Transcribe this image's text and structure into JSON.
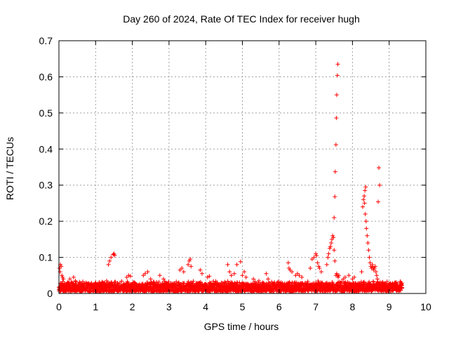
{
  "chart_data": {
    "type": "scatter",
    "title": "Day 260 of 2024, Rate Of TEC Index for receiver hugh",
    "xlabel": "GPS time / hours",
    "ylabel": "ROTI / TECUs",
    "xlim": [
      0,
      10
    ],
    "ylim": [
      0,
      0.7
    ],
    "xticks": [
      0,
      1,
      2,
      3,
      4,
      5,
      6,
      7,
      8,
      9,
      10
    ],
    "yticks": [
      0,
      0.1,
      0.2,
      0.3,
      0.4,
      0.5,
      0.6,
      0.7
    ],
    "xtick_labels": [
      "0",
      "1",
      "2",
      "3",
      "4",
      "5",
      "6",
      "7",
      "8",
      "9",
      "10"
    ],
    "ytick_labels": [
      "0",
      "0.1",
      "0.2",
      "0.3",
      "0.4",
      "0.5",
      "0.6",
      "0.7"
    ],
    "grid": true,
    "marker": "+",
    "color": "#ff0000",
    "series": [
      {
        "name": "ROTI",
        "points": [
          [
            0.02,
            0.07
          ],
          [
            0.03,
            0.06
          ],
          [
            0.04,
            0.08
          ],
          [
            0.06,
            0.075
          ],
          [
            0.08,
            0.05
          ],
          [
            0.1,
            0.045
          ],
          [
            0.12,
            0.04
          ],
          [
            0.3,
            0.04
          ],
          [
            0.4,
            0.045
          ],
          [
            0.45,
            0.035
          ],
          [
            1.0,
            0.03
          ],
          [
            1.3,
            0.035
          ],
          [
            1.35,
            0.08
          ],
          [
            1.38,
            0.09
          ],
          [
            1.42,
            0.1
          ],
          [
            1.48,
            0.108
          ],
          [
            1.5,
            0.11
          ],
          [
            1.52,
            0.106
          ],
          [
            1.85,
            0.045
          ],
          [
            1.9,
            0.05
          ],
          [
            1.95,
            0.048
          ],
          [
            2.3,
            0.05
          ],
          [
            2.35,
            0.055
          ],
          [
            2.42,
            0.06
          ],
          [
            2.5,
            0.04
          ],
          [
            2.75,
            0.05
          ],
          [
            2.85,
            0.04
          ],
          [
            3.3,
            0.065
          ],
          [
            3.35,
            0.07
          ],
          [
            3.4,
            0.06
          ],
          [
            3.52,
            0.08
          ],
          [
            3.55,
            0.09
          ],
          [
            3.58,
            0.095
          ],
          [
            3.6,
            0.075
          ],
          [
            3.85,
            0.065
          ],
          [
            3.9,
            0.055
          ],
          [
            4.05,
            0.045
          ],
          [
            4.1,
            0.048
          ],
          [
            4.6,
            0.08
          ],
          [
            4.65,
            0.06
          ],
          [
            4.7,
            0.05
          ],
          [
            4.78,
            0.055
          ],
          [
            4.85,
            0.08
          ],
          [
            4.95,
            0.088
          ],
          [
            5.0,
            0.05
          ],
          [
            5.05,
            0.06
          ],
          [
            5.1,
            0.045
          ],
          [
            5.3,
            0.04
          ],
          [
            5.45,
            0.035
          ],
          [
            5.65,
            0.055
          ],
          [
            5.7,
            0.04
          ],
          [
            6.25,
            0.085
          ],
          [
            6.27,
            0.07
          ],
          [
            6.3,
            0.065
          ],
          [
            6.35,
            0.06
          ],
          [
            6.45,
            0.05
          ],
          [
            6.5,
            0.055
          ],
          [
            6.55,
            0.05
          ],
          [
            6.62,
            0.045
          ],
          [
            6.85,
            0.07
          ],
          [
            6.9,
            0.095
          ],
          [
            6.95,
            0.1
          ],
          [
            7.0,
            0.11
          ],
          [
            7.02,
            0.105
          ],
          [
            7.05,
            0.085
          ],
          [
            7.08,
            0.075
          ],
          [
            7.1,
            0.07
          ],
          [
            7.15,
            0.06
          ],
          [
            7.3,
            0.08
          ],
          [
            7.33,
            0.1
          ],
          [
            7.35,
            0.11
          ],
          [
            7.38,
            0.125
          ],
          [
            7.4,
            0.13
          ],
          [
            7.42,
            0.14
          ],
          [
            7.44,
            0.15
          ],
          [
            7.46,
            0.16
          ],
          [
            7.48,
            0.155
          ],
          [
            7.5,
            0.12
          ],
          [
            7.52,
            0.09
          ],
          [
            7.55,
            0.05
          ],
          [
            7.57,
            0.055
          ],
          [
            7.59,
            0.05
          ],
          [
            7.61,
            0.045
          ],
          [
            7.63,
            0.05
          ],
          [
            7.5,
            0.21
          ],
          [
            7.52,
            0.268
          ],
          [
            7.53,
            0.337
          ],
          [
            7.55,
            0.412
          ],
          [
            7.56,
            0.486
          ],
          [
            7.57,
            0.55
          ],
          [
            7.59,
            0.604
          ],
          [
            7.6,
            0.635
          ],
          [
            7.75,
            0.04
          ],
          [
            7.8,
            0.045
          ],
          [
            7.9,
            0.05
          ],
          [
            8.0,
            0.04
          ],
          [
            8.05,
            0.045
          ],
          [
            8.25,
            0.06
          ],
          [
            8.28,
            0.24
          ],
          [
            8.3,
            0.26
          ],
          [
            8.32,
            0.27
          ],
          [
            8.34,
            0.285
          ],
          [
            8.36,
            0.295
          ],
          [
            8.33,
            0.25
          ],
          [
            8.35,
            0.22
          ],
          [
            8.37,
            0.2
          ],
          [
            8.38,
            0.18
          ],
          [
            8.4,
            0.16
          ],
          [
            8.42,
            0.14
          ],
          [
            8.44,
            0.12
          ],
          [
            8.46,
            0.1
          ],
          [
            8.48,
            0.085
          ],
          [
            8.5,
            0.075
          ],
          [
            8.52,
            0.07
          ],
          [
            8.54,
            0.08
          ],
          [
            8.56,
            0.072
          ],
          [
            8.58,
            0.065
          ],
          [
            8.6,
            0.07
          ],
          [
            8.62,
            0.075
          ],
          [
            8.64,
            0.06
          ],
          [
            8.66,
            0.05
          ],
          [
            8.68,
            0.04
          ],
          [
            8.72,
            0.348
          ],
          [
            8.74,
            0.3
          ],
          [
            8.7,
            0.254
          ],
          [
            8.8,
            0.03
          ],
          [
            8.9,
            0.025
          ],
          [
            9.0,
            0.025
          ],
          [
            9.1,
            0.02
          ],
          [
            9.2,
            0.02
          ],
          [
            9.3,
            0.018
          ]
        ],
        "band": {
          "x_start": 0.0,
          "x_end": 9.35,
          "y_low": 0.005,
          "y_high": 0.035
        }
      }
    ]
  }
}
